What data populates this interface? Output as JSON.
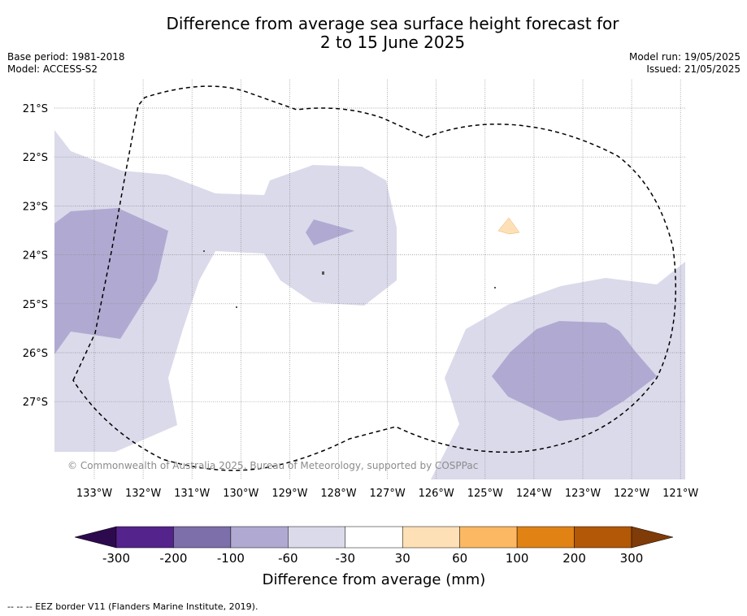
{
  "header": {
    "title_line1": "Difference from average sea surface height forecast for",
    "title_line2": "2 to 15 June 2025",
    "base_period": "Base period: 1981-2018",
    "model": "Model: ACCESS-S2",
    "model_run": "Model run: 19/05/2025",
    "issued": "Issued: 21/05/2025"
  },
  "map": {
    "lat_labels": [
      "21°S",
      "22°S",
      "23°S",
      "24°S",
      "25°S",
      "26°S",
      "27°S"
    ],
    "lon_labels": [
      "133°W",
      "132°W",
      "131°W",
      "130°W",
      "129°W",
      "128°W",
      "127°W",
      "126°W",
      "125°W",
      "124°W",
      "123°W",
      "122°W",
      "121°W"
    ],
    "copyright": "© Commonwealth of Australia 2025, Bureau of Meteorology, supported by COSPPac",
    "eez_border": "dashed"
  },
  "colorbar": {
    "title": "Difference from average (mm)",
    "tick_labels": [
      "-300",
      "-200",
      "-100",
      "-60",
      "-30",
      "30",
      "60",
      "100",
      "200",
      "300"
    ],
    "colors": {
      "below_min": "#2d0a4e",
      "bins": [
        "#54238c",
        "#7d6fa9",
        "#b0aad2",
        "#dadaeb",
        "#ffffff",
        "#fee0b6",
        "#fdb863",
        "#e08214",
        "#b35806"
      ],
      "above_max": "#7f3b08"
    }
  },
  "footnote": "--  --  -- EEZ border V11 (Flanders Marine Institute, 2019)."
}
